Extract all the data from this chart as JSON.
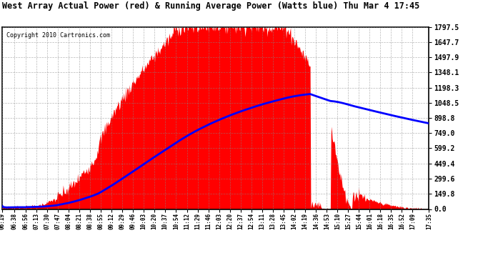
{
  "title": "West Array Actual Power (red) & Running Average Power (Watts blue) Thu Mar 4 17:45",
  "copyright": "Copyright 2010 Cartronics.com",
  "yticks": [
    0.0,
    149.8,
    299.6,
    449.4,
    599.2,
    749.0,
    898.8,
    1048.5,
    1198.3,
    1348.1,
    1497.9,
    1647.7,
    1797.5
  ],
  "ymax": 1797.5,
  "ymin": 0.0,
  "bg_color": "#ffffff",
  "grid_color": "#888888",
  "fill_color": "#ff0000",
  "avg_color": "#0000ff",
  "xtick_labels": [
    "06:19",
    "06:38",
    "06:56",
    "07:13",
    "07:30",
    "07:47",
    "08:04",
    "08:21",
    "08:38",
    "08:55",
    "09:12",
    "09:29",
    "09:46",
    "10:03",
    "10:20",
    "10:37",
    "10:54",
    "11:12",
    "11:29",
    "11:46",
    "12:03",
    "12:20",
    "12:37",
    "12:54",
    "13:11",
    "13:28",
    "13:45",
    "14:02",
    "14:19",
    "14:36",
    "14:53",
    "15:10",
    "15:27",
    "15:44",
    "16:01",
    "16:18",
    "16:35",
    "16:52",
    "17:09",
    "17:35"
  ],
  "start_time": "06:19",
  "end_time": "17:35"
}
